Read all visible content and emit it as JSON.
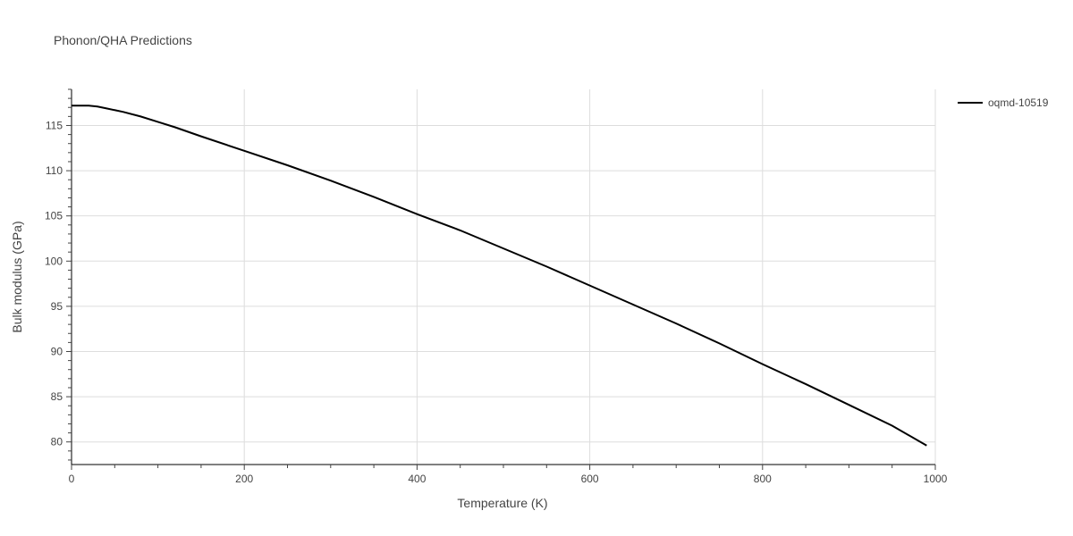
{
  "chart_data": {
    "type": "line",
    "title": "Phonon/QHA Predictions",
    "xlabel": "Temperature (K)",
    "ylabel": "Bulk modulus (GPa)",
    "xlim": [
      0,
      1000
    ],
    "ylim": [
      77.5,
      119
    ],
    "x_ticks": [
      0,
      200,
      400,
      600,
      800,
      1000
    ],
    "y_ticks": [
      80,
      85,
      90,
      95,
      100,
      105,
      110,
      115
    ],
    "grid": true,
    "legend_position": "top-right",
    "series": [
      {
        "name": "oqmd-10519",
        "color": "#000000",
        "x": [
          0,
          10,
          20,
          30,
          40,
          50,
          60,
          80,
          100,
          120,
          150,
          200,
          250,
          300,
          350,
          400,
          450,
          500,
          550,
          600,
          650,
          700,
          750,
          800,
          850,
          900,
          950,
          990
        ],
        "y": [
          117.2,
          117.2,
          117.2,
          117.1,
          116.9,
          116.7,
          116.5,
          116.0,
          115.4,
          114.8,
          113.8,
          112.2,
          110.6,
          108.9,
          107.1,
          105.2,
          103.4,
          101.4,
          99.4,
          97.3,
          95.2,
          93.1,
          90.9,
          88.6,
          86.4,
          84.1,
          81.8,
          79.6
        ]
      }
    ]
  }
}
